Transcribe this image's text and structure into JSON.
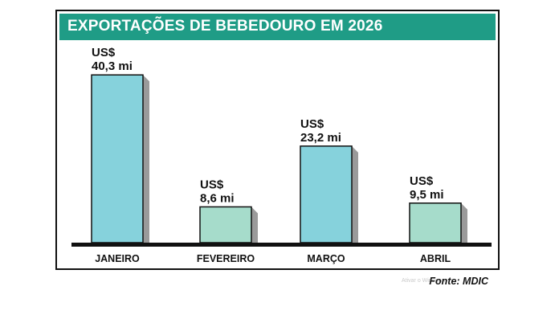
{
  "chart_data": {
    "type": "bar",
    "title": "EXPORTAÇÕES DE BEBEDOURO EM 2026",
    "categories": [
      "JANEIRO",
      "FEVEREIRO",
      "MARÇO",
      "ABRIL"
    ],
    "values": [
      40.3,
      8.6,
      23.2,
      9.5
    ],
    "value_labels": [
      [
        "US$",
        "40,3 mi"
      ],
      [
        "US$",
        "8,6 mi"
      ],
      [
        "US$",
        "23,2 mi"
      ],
      [
        "US$",
        "9,5 mi"
      ]
    ],
    "bar_colors": [
      "#86d2dc",
      "#a6dccb",
      "#86d2dc",
      "#a6dccb"
    ],
    "shadow_color": "#9a9a9a",
    "title_bar_color": "#1f9c86",
    "xlabel": "",
    "ylabel": "",
    "grid": false,
    "legend": "none"
  },
  "source": "Fonte: MDIC",
  "watermark": "Ativar o Windows"
}
